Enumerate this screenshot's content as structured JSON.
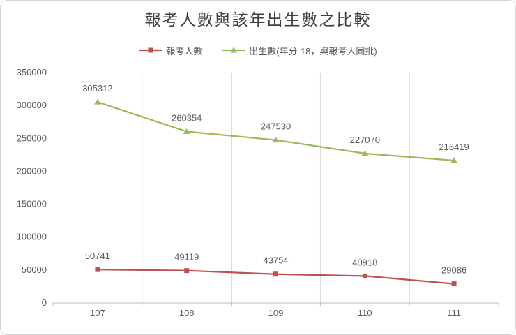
{
  "window": {
    "background": "#ffffff",
    "border_color": "#d6d6d6"
  },
  "chart_data": {
    "type": "line",
    "title": "報考人數與該年出生數之比較",
    "categories": [
      "107",
      "108",
      "109",
      "110",
      "111"
    ],
    "series": [
      {
        "name": "報考人數",
        "key": "applicants",
        "color": "#c0504d",
        "marker": "square",
        "values": [
          50741,
          49119,
          43754,
          40918,
          29086
        ]
      },
      {
        "name": "出生數(年分-18，與報考人同批)",
        "key": "births",
        "color": "#9bbb59",
        "marker": "triangle",
        "values": [
          305312,
          260354,
          247530,
          227070,
          216419
        ]
      }
    ],
    "xlabel": "",
    "ylabel": "",
    "ylim": [
      0,
      350000
    ],
    "yticks": [
      0,
      50000,
      100000,
      150000,
      200000,
      250000,
      300000,
      350000
    ],
    "grid": "vertical-only",
    "grid_color": "#d9d9d9",
    "axis_color": "#bfbfbf",
    "text_color": "#595959",
    "legend_position": "top",
    "data_labels": true
  }
}
